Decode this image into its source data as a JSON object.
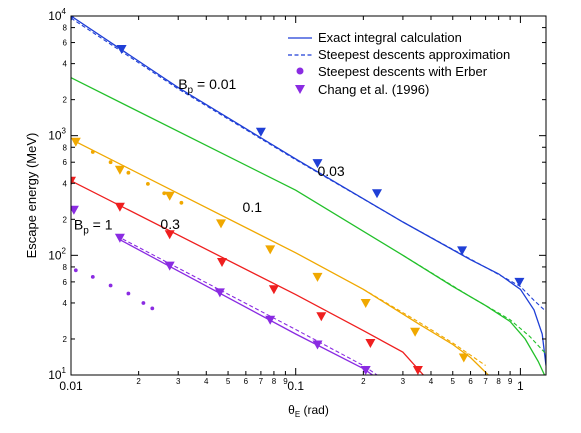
{
  "chart_data": {
    "type": "line",
    "title": "",
    "xlabel_symbol": "θ",
    "xlabel_sub": "E",
    "xlabel_unit": " (rad)",
    "ylabel": "Escape energy (MeV)",
    "xscale": "log",
    "yscale": "log",
    "xlim": [
      0.01,
      1.3
    ],
    "ylim": [
      10,
      10000
    ],
    "legend_position": "top-right",
    "legend": [
      {
        "label": "Exact integral calculation",
        "marker": "solid-line"
      },
      {
        "label": "Steepest descents approximation",
        "marker": "dashed-line"
      },
      {
        "label": "Steepest descents with Erber",
        "marker": "circle"
      },
      {
        "label": "Chang et al.  (1996)",
        "marker": "triangle-down"
      }
    ],
    "x_major_ticks": [
      {
        "value": 0.01,
        "label": "0.01"
      },
      {
        "value": 0.1,
        "label": "0.1"
      },
      {
        "value": 1,
        "label": "1"
      }
    ],
    "x_minor_ticks": [
      {
        "value": 0.02,
        "label": "2"
      },
      {
        "value": 0.03,
        "label": "3"
      },
      {
        "value": 0.04,
        "label": "4"
      },
      {
        "value": 0.05,
        "label": "5"
      },
      {
        "value": 0.06,
        "label": "6"
      },
      {
        "value": 0.07,
        "label": "7"
      },
      {
        "value": 0.08,
        "label": "8"
      },
      {
        "value": 0.09,
        "label": "9"
      },
      {
        "value": 0.2,
        "label": "2"
      },
      {
        "value": 0.3,
        "label": "3"
      },
      {
        "value": 0.4,
        "label": "4"
      },
      {
        "value": 0.5,
        "label": "5"
      },
      {
        "value": 0.6,
        "label": "6"
      },
      {
        "value": 0.7,
        "label": "7"
      },
      {
        "value": 0.8,
        "label": "8"
      },
      {
        "value": 0.9,
        "label": "9"
      }
    ],
    "y_major_ticks": [
      {
        "value": 10,
        "base": "10",
        "exp": "1"
      },
      {
        "value": 100,
        "base": "10",
        "exp": "2"
      },
      {
        "value": 1000,
        "base": "10",
        "exp": "3"
      },
      {
        "value": 10000,
        "base": "10",
        "exp": "4"
      }
    ],
    "y_minor_ticks": [
      {
        "value": 20,
        "label": "2"
      },
      {
        "value": 40,
        "label": "4"
      },
      {
        "value": 60,
        "label": "6"
      },
      {
        "value": 80,
        "label": "8"
      },
      {
        "value": 200,
        "label": "2"
      },
      {
        "value": 400,
        "label": "4"
      },
      {
        "value": 600,
        "label": "6"
      },
      {
        "value": 800,
        "label": "8"
      },
      {
        "value": 2000,
        "label": "2"
      },
      {
        "value": 4000,
        "label": "4"
      },
      {
        "value": 6000,
        "label": "6"
      },
      {
        "value": 8000,
        "label": "8"
      }
    ],
    "annotations": [
      {
        "text": "B",
        "sub": "p",
        "rest": " = 0.01",
        "x": 0.03,
        "y": 2450
      },
      {
        "text": "0.03",
        "x": 0.125,
        "y": 460
      },
      {
        "text": "0.1",
        "x": 0.058,
        "y": 230
      },
      {
        "text": "B",
        "sub": "p",
        "rest": " = 1",
        "x": 0.0103,
        "y": 165
      },
      {
        "text": "0.3",
        "x": 0.025,
        "y": 166
      }
    ],
    "series": [
      {
        "name": "0.01",
        "color": "#1f3fd6",
        "exact": [
          [
            0.01,
            10000
          ],
          [
            0.03,
            2520
          ],
          [
            0.1,
            640
          ],
          [
            0.3,
            190
          ],
          [
            0.6,
            92
          ],
          [
            0.8,
            70
          ],
          [
            1.0,
            52
          ],
          [
            1.15,
            35
          ],
          [
            1.25,
            22
          ],
          [
            1.3,
            12
          ]
        ],
        "approx": [
          [
            0.01,
            9600
          ],
          [
            0.03,
            2460
          ],
          [
            0.1,
            630
          ],
          [
            0.3,
            190
          ],
          [
            0.6,
            93
          ],
          [
            1.0,
            55
          ],
          [
            1.15,
            42
          ],
          [
            1.3,
            34
          ]
        ],
        "chang": [
          [
            0.01,
            9900
          ],
          [
            0.0168,
            5300
          ],
          [
            0.07,
            1080
          ],
          [
            0.125,
            590
          ],
          [
            0.23,
            330
          ],
          [
            0.55,
            110
          ],
          [
            0.99,
            60
          ]
        ]
      },
      {
        "name": "0.03",
        "color": "#22c02a",
        "exact": [
          [
            0.01,
            3050
          ],
          [
            0.1,
            350
          ],
          [
            0.3,
            100
          ],
          [
            0.5,
            55
          ],
          [
            0.7,
            38
          ],
          [
            0.9,
            28
          ],
          [
            1.05,
            20
          ],
          [
            1.2,
            13
          ],
          [
            1.28,
            10
          ]
        ],
        "approx": [
          [
            0.3,
            100
          ],
          [
            0.6,
            45
          ],
          [
            0.9,
            29
          ],
          [
            1.1,
            21
          ],
          [
            1.3,
            15
          ]
        ]
      },
      {
        "name": "0.1",
        "color": "#f0a800",
        "exact": [
          [
            0.0105,
            890
          ],
          [
            0.1,
            105
          ],
          [
            0.2,
            52
          ],
          [
            0.35,
            27
          ],
          [
            0.5,
            18
          ],
          [
            0.6,
            14
          ],
          [
            0.72,
            10
          ]
        ],
        "approx": [
          [
            0.2,
            52
          ],
          [
            0.35,
            28
          ],
          [
            0.5,
            18.5
          ],
          [
            0.7,
            12
          ]
        ],
        "erber": [
          [
            0.0105,
            880
          ],
          [
            0.0125,
            730
          ],
          [
            0.015,
            600
          ],
          [
            0.018,
            490
          ],
          [
            0.022,
            395
          ],
          [
            0.026,
            330
          ],
          [
            0.031,
            275
          ]
        ],
        "chang": [
          [
            0.0105,
            890
          ],
          [
            0.0165,
            520
          ],
          [
            0.0275,
            315
          ],
          [
            0.0465,
            185
          ],
          [
            0.077,
            112
          ],
          [
            0.125,
            66
          ],
          [
            0.205,
            40
          ],
          [
            0.34,
            23
          ],
          [
            0.56,
            14
          ]
        ]
      },
      {
        "name": "1",
        "color": "#ef1f1f",
        "exact": [
          [
            0.01,
            420
          ],
          [
            0.1,
            47
          ],
          [
            0.2,
            23.5
          ],
          [
            0.3,
            15.5
          ],
          [
            0.37,
            10
          ]
        ],
        "chang": [
          [
            0.01,
            420
          ],
          [
            0.0165,
            255
          ],
          [
            0.0275,
            150
          ],
          [
            0.047,
            88
          ],
          [
            0.08,
            52
          ],
          [
            0.13,
            31
          ],
          [
            0.215,
            18.5
          ],
          [
            0.35,
            11
          ]
        ]
      },
      {
        "name": "0.3",
        "color": "#8a2be2",
        "exact": [
          [
            0.0165,
            135
          ],
          [
            0.1,
            22
          ],
          [
            0.2,
            11.3
          ],
          [
            0.22,
            10
          ]
        ],
        "approx": [
          [
            0.016,
            145
          ],
          [
            0.1,
            24
          ],
          [
            0.2,
            12
          ],
          [
            0.23,
            10
          ]
        ],
        "erber": [
          [
            0.0105,
            75
          ],
          [
            0.0125,
            66
          ],
          [
            0.015,
            56
          ],
          [
            0.018,
            48
          ],
          [
            0.021,
            40
          ],
          [
            0.023,
            36
          ]
        ],
        "chang": [
          [
            0.0103,
            240
          ],
          [
            0.0165,
            140
          ],
          [
            0.0275,
            82
          ],
          [
            0.046,
            49
          ],
          [
            0.077,
            29
          ],
          [
            0.125,
            18
          ],
          [
            0.205,
            11
          ]
        ]
      }
    ]
  }
}
